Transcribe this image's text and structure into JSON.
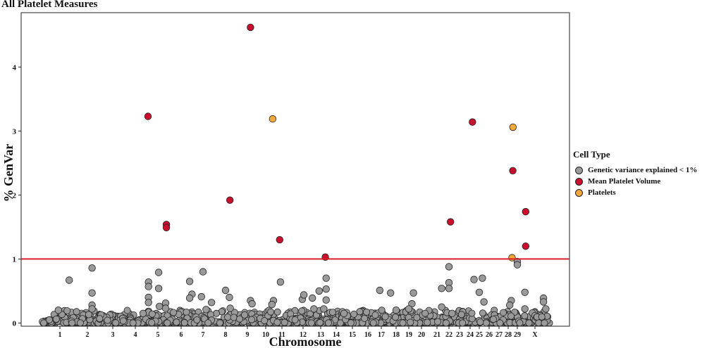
{
  "chart_data": {
    "type": "scatter",
    "title": "All Platelet Measures",
    "xlabel": "Chromosome",
    "ylabel": "% GenVar",
    "ylim": [
      -0.05,
      4.85
    ],
    "yticks": [
      0,
      1,
      2,
      3,
      4
    ],
    "threshold": 1,
    "threshold_color": "#d61f26",
    "chromosomes": [
      "1",
      "2",
      "3",
      "4",
      "5",
      "6",
      "7",
      "8",
      "9",
      "10",
      "11",
      "12",
      "13",
      "14",
      "15",
      "16",
      "17",
      "18",
      "19",
      "20",
      "21",
      "22",
      "23",
      "24",
      "25",
      "26",
      "27",
      "28",
      "29",
      "X"
    ],
    "chrom_labels_shown": [
      "1",
      "2",
      "3",
      "4",
      "5",
      "6",
      "7",
      "8",
      "9",
      "10",
      "11",
      "12",
      "13",
      "14",
      "15",
      "16",
      "17",
      "18",
      "19",
      "20",
      "21",
      "22",
      "23",
      "24",
      "25",
      "26",
      "27",
      "28",
      "29",
      "X"
    ],
    "legend": {
      "title": "Cell Type",
      "placement": "right",
      "entries": [
        {
          "label": "Genetic variance explained < 1%",
          "color": "#9a9a9a"
        },
        {
          "label": "Mean Platelet Volume",
          "color": "#c8102e"
        },
        {
          "label": "Platelets",
          "color": "#f3a93c"
        }
      ]
    },
    "series": [
      {
        "name": "Mean Platelet Volume",
        "color": "#c8102e",
        "points": [
          {
            "chr": "4",
            "pos": 0.82,
            "y": 3.23
          },
          {
            "chr": "5",
            "pos": 0.55,
            "y": 1.54
          },
          {
            "chr": "5",
            "pos": 0.55,
            "y": 1.49
          },
          {
            "chr": "8",
            "pos": 0.28,
            "y": 1.92
          },
          {
            "chr": "9",
            "pos": 0.2,
            "y": 4.62
          },
          {
            "chr": "10",
            "pos": 0.9,
            "y": 1.3
          },
          {
            "chr": "13",
            "pos": 0.3,
            "y": 1.03
          },
          {
            "chr": "22",
            "pos": 0.1,
            "y": 1.58
          },
          {
            "chr": "24",
            "pos": 0.15,
            "y": 3.14
          },
          {
            "chr": "28",
            "pos": 0.3,
            "y": 2.38
          },
          {
            "chr": "X",
            "pos": -0.6,
            "y": 1.74
          },
          {
            "chr": "X",
            "pos": -0.6,
            "y": 1.2
          }
        ]
      },
      {
        "name": "Platelets",
        "color": "#f3a93c",
        "points": [
          {
            "chr": "10",
            "pos": 0.45,
            "y": 3.19
          },
          {
            "chr": "27",
            "pos": 0.9,
            "y": 3.06
          },
          {
            "chr": "28",
            "pos": 0.25,
            "y": 1.02
          }
        ]
      },
      {
        "name": "Genetic variance explained < 1%",
        "color": "#9a9a9a",
        "points": [
          {
            "chr": "1",
            "pos": 0.6,
            "y": 0.67
          },
          {
            "chr": "1",
            "pos": -0.1,
            "y": 0.2
          },
          {
            "chr": "2",
            "pos": 0.3,
            "y": 0.86
          },
          {
            "chr": "2",
            "pos": 0.3,
            "y": 0.47
          },
          {
            "chr": "2",
            "pos": 0.3,
            "y": 0.28
          },
          {
            "chr": "2",
            "pos": 0.3,
            "y": 0.22
          },
          {
            "chr": "4",
            "pos": 0.85,
            "y": 0.64
          },
          {
            "chr": "4",
            "pos": 0.85,
            "y": 0.57
          },
          {
            "chr": "4",
            "pos": 0.85,
            "y": 0.4
          },
          {
            "chr": "4",
            "pos": 0.85,
            "y": 0.32
          },
          {
            "chr": "4",
            "pos": 0.5,
            "y": 0.15
          },
          {
            "chr": "5",
            "pos": 0.05,
            "y": 0.79
          },
          {
            "chr": "5",
            "pos": 0.05,
            "y": 0.54
          },
          {
            "chr": "5",
            "pos": 0.1,
            "y": 0.26
          },
          {
            "chr": "5",
            "pos": 0.5,
            "y": 0.31
          },
          {
            "chr": "5",
            "pos": 0.5,
            "y": 0.23
          },
          {
            "chr": "6",
            "pos": 0.55,
            "y": 0.65
          },
          {
            "chr": "6",
            "pos": 0.7,
            "y": 0.45
          },
          {
            "chr": "6",
            "pos": 0.55,
            "y": 0.39
          },
          {
            "chr": "7",
            "pos": 0.0,
            "y": 0.8
          },
          {
            "chr": "7",
            "pos": -0.1,
            "y": 0.41
          },
          {
            "chr": "7",
            "pos": 0.2,
            "y": 0.21
          },
          {
            "chr": "8",
            "pos": 0.0,
            "y": 0.51
          },
          {
            "chr": "8",
            "pos": 0.25,
            "y": 0.4
          },
          {
            "chr": "8",
            "pos": 0.3,
            "y": 0.23
          },
          {
            "chr": "7",
            "pos": 0.55,
            "y": 0.32
          },
          {
            "chr": "9",
            "pos": 0.2,
            "y": 0.35
          },
          {
            "chr": "9",
            "pos": 0.3,
            "y": 0.3
          },
          {
            "chr": "10",
            "pos": 0.5,
            "y": 0.35
          },
          {
            "chr": "10",
            "pos": 0.4,
            "y": 0.29
          },
          {
            "chr": "10",
            "pos": 0.95,
            "y": 0.64
          },
          {
            "chr": "12",
            "pos": -0.05,
            "y": 0.37
          },
          {
            "chr": "12",
            "pos": 0.05,
            "y": 0.44
          },
          {
            "chr": "12",
            "pos": 0.6,
            "y": 0.39
          },
          {
            "chr": "12",
            "pos": 0.7,
            "y": 0.22
          },
          {
            "chr": "13",
            "pos": -0.1,
            "y": 0.5
          },
          {
            "chr": "13",
            "pos": 0.35,
            "y": 0.7
          },
          {
            "chr": "13",
            "pos": 0.35,
            "y": 0.36
          },
          {
            "chr": "13",
            "pos": 0.35,
            "y": 0.53
          },
          {
            "chr": "13",
            "pos": 0.2,
            "y": 0.22
          },
          {
            "chr": "14",
            "pos": 0.5,
            "y": 0.15
          },
          {
            "chr": "17",
            "pos": -0.1,
            "y": 0.51
          },
          {
            "chr": "17",
            "pos": 0.6,
            "y": 0.47
          },
          {
            "chr": "18",
            "pos": 0.0,
            "y": 0.2
          },
          {
            "chr": "19",
            "pos": 0.3,
            "y": 0.47
          },
          {
            "chr": "19",
            "pos": 0.2,
            "y": 0.3
          },
          {
            "chr": "19",
            "pos": 0.0,
            "y": 0.22
          },
          {
            "chr": "21",
            "pos": 0.3,
            "y": 0.54
          },
          {
            "chr": "21",
            "pos": 0.3,
            "y": 0.25
          },
          {
            "chr": "22",
            "pos": 0.0,
            "y": 0.88
          },
          {
            "chr": "22",
            "pos": 0.0,
            "y": 0.63
          },
          {
            "chr": "22",
            "pos": 0.0,
            "y": 0.54
          },
          {
            "chr": "22",
            "pos": 0.2,
            "y": 0.15
          },
          {
            "chr": "24",
            "pos": 0.25,
            "y": 0.68
          },
          {
            "chr": "25",
            "pos": 0.2,
            "y": 0.7
          },
          {
            "chr": "25",
            "pos": 0.0,
            "y": 0.48
          },
          {
            "chr": "25",
            "pos": 0.3,
            "y": 0.33
          },
          {
            "chr": "28",
            "pos": 0.2,
            "y": 0.35
          },
          {
            "chr": "28",
            "pos": 0.1,
            "y": 0.28
          },
          {
            "chr": "29",
            "pos": 0.0,
            "y": 0.96
          },
          {
            "chr": "29",
            "pos": 0.0,
            "y": 0.91
          },
          {
            "chr": "X",
            "pos": -0.65,
            "y": 0.48
          },
          {
            "chr": "X",
            "pos": -0.65,
            "y": 0.22
          },
          {
            "chr": "X",
            "pos": 0.55,
            "y": 0.39
          },
          {
            "chr": "X",
            "pos": 0.55,
            "y": 0.33
          },
          {
            "chr": "X",
            "pos": 0.7,
            "y": 0.22
          }
        ]
      }
    ],
    "background_points": {
      "name": "Genetic variance explained < 1%",
      "description_values_range": [
        0,
        0.2
      ],
      "count": 1100,
      "color": "#9a9a9a"
    }
  }
}
